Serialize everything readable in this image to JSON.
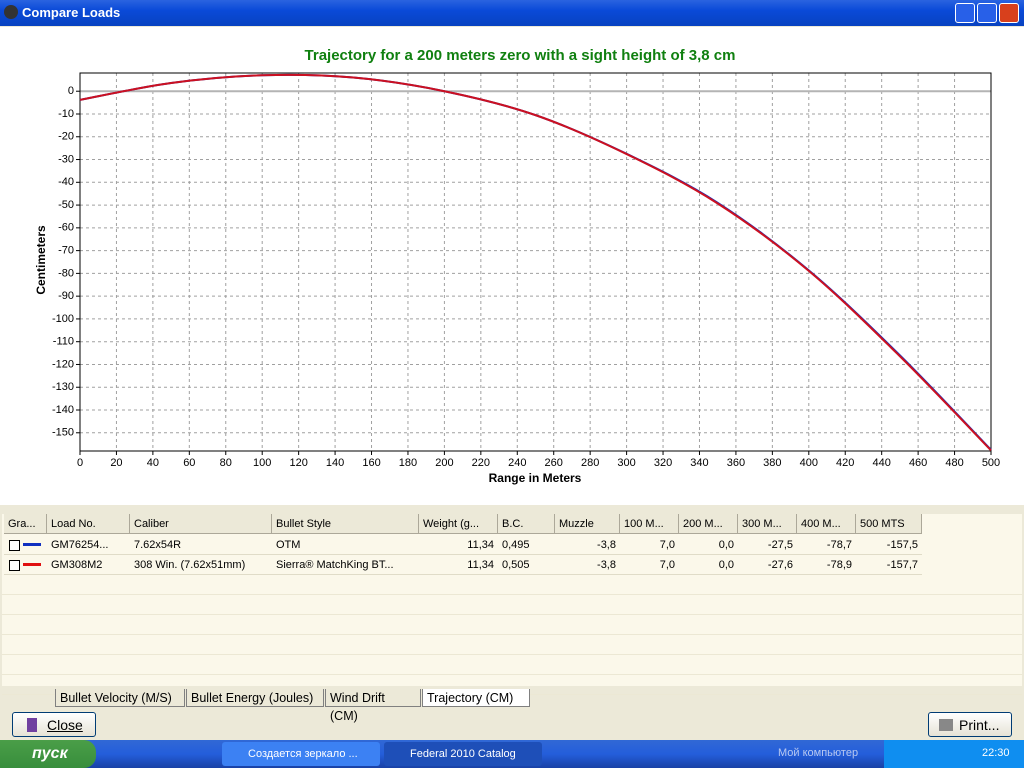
{
  "window": {
    "title": "Compare Loads"
  },
  "chart_data": {
    "type": "line",
    "title": "Trajectory for a 200 meters zero with a sight height of 3,8 cm",
    "x_label": "Range in Meters",
    "y_label": "Centimeters",
    "x": [
      0,
      50,
      100,
      150,
      200,
      250,
      300,
      350,
      400,
      450,
      500
    ],
    "series": [
      {
        "name": "GM76254...",
        "color": "#1030c0",
        "values": [
          -3.8,
          3.6,
          7.0,
          6.0,
          0.0,
          -10.5,
          -27.5,
          -49,
          -78.7,
          -116,
          -157.5
        ]
      },
      {
        "name": "GM308M2",
        "color": "#cc1020",
        "values": [
          -3.8,
          3.6,
          7.0,
          6.0,
          0.0,
          -10.5,
          -27.6,
          -49.3,
          -78.9,
          -116.4,
          -157.7
        ]
      }
    ],
    "xlim": [
      0,
      500
    ],
    "ylim": [
      -158,
      8
    ],
    "xticks": [
      0,
      20,
      40,
      60,
      80,
      100,
      120,
      140,
      160,
      180,
      200,
      220,
      240,
      260,
      280,
      300,
      320,
      340,
      360,
      380,
      400,
      420,
      440,
      460,
      480,
      500
    ],
    "yticks": [
      0,
      -10,
      -20,
      -30,
      -40,
      -50,
      -60,
      -70,
      -80,
      -90,
      -100,
      -110,
      -120,
      -130,
      -140,
      -150
    ],
    "grid": true,
    "reference_line": 0,
    "reference_color": "#b4b4b4",
    "title_color": "#108010"
  },
  "table": {
    "columns": [
      "Gra...",
      "Load No.",
      "Caliber",
      "Bullet Style",
      "Weight (g...",
      "B.C.",
      "Muzzle",
      "100 M...",
      "200 M...",
      "300 M...",
      "400 M...",
      "500 MTS"
    ],
    "rows": [
      {
        "color": "#1030c0",
        "cells": [
          "GM76254...",
          "7.62x54R",
          "OTM",
          "11,34",
          "0,495",
          "-3,8",
          "7,0",
          "0,0",
          "-27,5",
          "-78,7",
          "-157,5"
        ]
      },
      {
        "color": "#e01010",
        "cells": [
          "GM308M2",
          "308 Win. (7.62x51mm)",
          "Sierra® MatchKing BT...",
          "11,34",
          "0,505",
          "-3,8",
          "7,0",
          "0,0",
          "-27,6",
          "-78,9",
          "-157,7"
        ]
      }
    ]
  },
  "tabs": [
    "Bullet Velocity (M/S)",
    "Bullet Energy (Joules)",
    "Wind Drift (CM)",
    "Trajectory (CM)"
  ],
  "buttons": {
    "close": "Close",
    "print": "Print..."
  },
  "taskbar": {
    "start": "пуск",
    "tasks": [
      "Создается зеркало ...",
      "Federal 2010 Catalog"
    ],
    "tray_label": "Мой компьютер",
    "clock": "22:30"
  }
}
